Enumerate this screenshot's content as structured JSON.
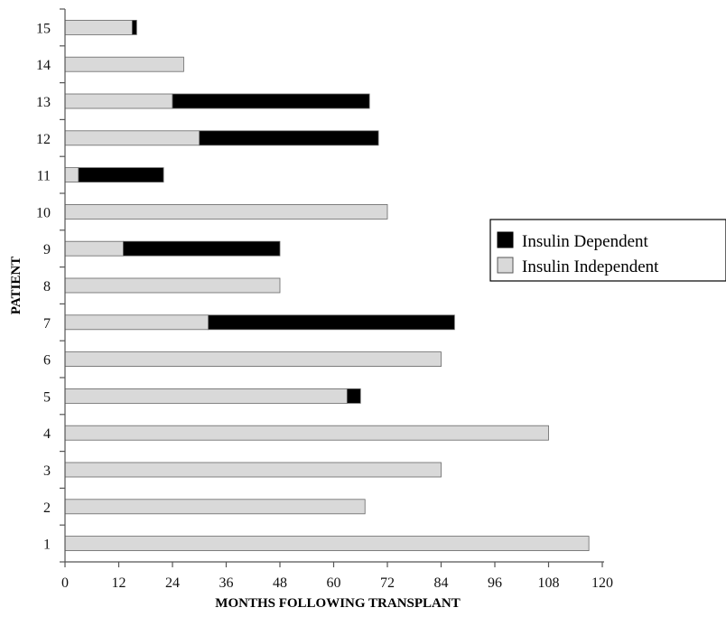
{
  "chart_data": {
    "type": "bar",
    "orientation": "horizontal",
    "stacked": true,
    "title": "",
    "xlabel": "MONTHS FOLLOWING TRANSPLANT",
    "ylabel": "PATIENT",
    "xlim": [
      0,
      120
    ],
    "xticks": [
      0,
      12,
      24,
      36,
      48,
      60,
      72,
      84,
      96,
      108,
      120
    ],
    "categories": [
      "1",
      "2",
      "3",
      "4",
      "5",
      "6",
      "7",
      "8",
      "9",
      "10",
      "11",
      "12",
      "13",
      "14",
      "15"
    ],
    "series": [
      {
        "name": "Insulin Independent",
        "color": "#d9d9d9",
        "values": [
          117,
          67,
          84,
          108,
          63,
          84,
          32,
          48,
          13,
          72,
          3,
          30,
          24,
          26.5,
          15
        ]
      },
      {
        "name": "Insulin Dependent",
        "color": "#000000",
        "values": [
          0,
          0,
          0,
          0,
          3,
          0,
          55,
          0,
          35,
          0,
          19,
          40,
          44,
          0,
          1
        ]
      }
    ],
    "legend_order": [
      "Insulin Dependent",
      "Insulin Independent"
    ],
    "legend_position": "right",
    "grid": false
  }
}
